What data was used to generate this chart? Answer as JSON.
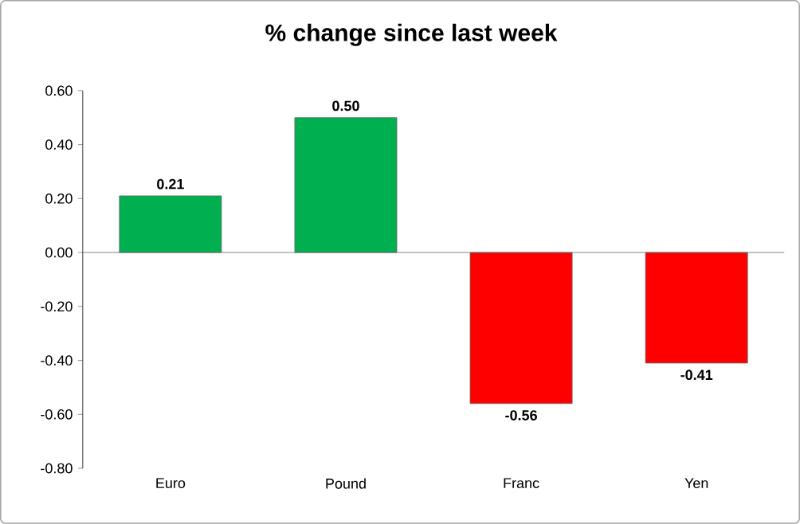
{
  "chart_data": {
    "type": "bar",
    "title": "% change since last week",
    "categories": [
      "Euro",
      "Pound",
      "Franc",
      "Yen"
    ],
    "values": [
      0.21,
      0.5,
      -0.56,
      -0.41
    ],
    "colors": [
      "#00b050",
      "#00b050",
      "#ff0000",
      "#ff0000"
    ],
    "ylim": [
      -0.8,
      0.6
    ],
    "yticks": [
      {
        "value": -0.8,
        "label": "-0.80"
      },
      {
        "value": -0.6,
        "label": "-0.60"
      },
      {
        "value": -0.4,
        "label": "-0.40"
      },
      {
        "value": -0.2,
        "label": "-0.20"
      },
      {
        "value": 0,
        "label": "0.00"
      },
      {
        "value": 0.2,
        "label": "0.20"
      },
      {
        "value": 0.4,
        "label": "0.40"
      },
      {
        "value": 0.6,
        "label": "0.60"
      }
    ],
    "value_labels": [
      "0.21",
      "0.50",
      "-0.56",
      "-0.41"
    ]
  }
}
